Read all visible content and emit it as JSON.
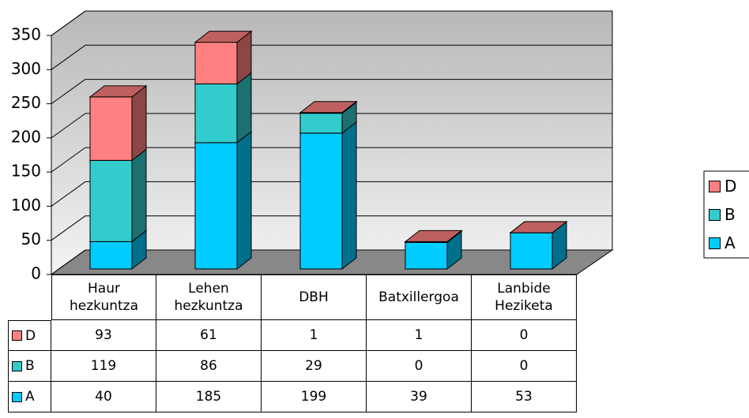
{
  "chart_data": {
    "type": "bar3d_stacked",
    "categories": [
      "Haur hezkuntza",
      "Lehen hezkuntza",
      "DBH",
      "Batxillergoa",
      "Lanbide Heziketa"
    ],
    "series": [
      {
        "name": "A",
        "color": "#00ccff",
        "values": [
          40,
          185,
          199,
          39,
          53
        ]
      },
      {
        "name": "B",
        "color": "#33cccc",
        "values": [
          119,
          86,
          29,
          0,
          0
        ]
      },
      {
        "name": "D",
        "color": "#ff8080",
        "values": [
          93,
          61,
          1,
          1,
          0
        ]
      }
    ],
    "ylim": [
      0,
      350
    ],
    "yticks": [
      0,
      50,
      100,
      150,
      200,
      250,
      300,
      350
    ],
    "grid": true,
    "legend": "right",
    "data_table": true
  }
}
